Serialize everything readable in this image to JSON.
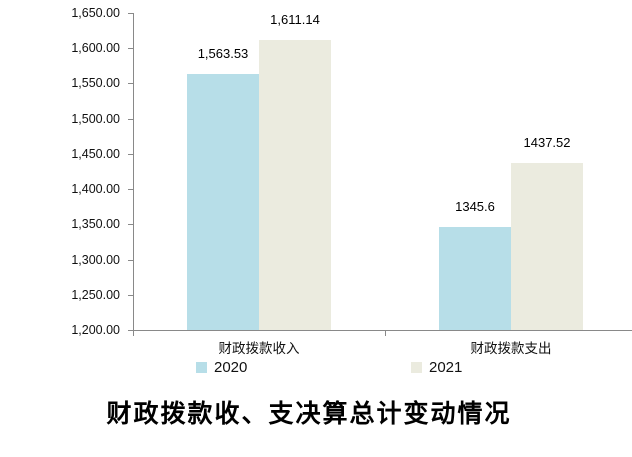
{
  "chart_data": {
    "type": "bar",
    "title": "财政拨款收、支决算总计变动情况",
    "categories": [
      "财政拨款收入",
      "财政拨款支出"
    ],
    "series": [
      {
        "name": "2020",
        "color": "#B7DEE8",
        "values": [
          1563.53,
          1345.6
        ],
        "labels": [
          "1,563.53",
          "1345.6"
        ]
      },
      {
        "name": "2021",
        "color": "#EBEBDF",
        "values": [
          1611.14,
          1437.52
        ],
        "labels": [
          "1,611.14",
          "1437.52"
        ]
      }
    ],
    "ylim": [
      1200,
      1650
    ],
    "ytick_step": 50,
    "ytick_labels": [
      "1,200.00",
      "1,250.00",
      "1,300.00",
      "1,350.00",
      "1,400.00",
      "1,450.00",
      "1,500.00",
      "1,550.00",
      "1,600.00",
      "1,650.00"
    ],
    "grid": false,
    "legend_position": "bottom",
    "axis_color": "#898989",
    "text_color": "#000000",
    "background": "#ffffff"
  }
}
